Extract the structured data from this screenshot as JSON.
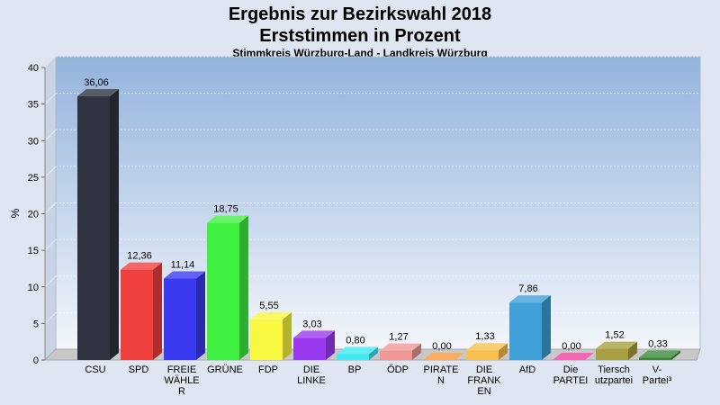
{
  "chart_data": {
    "type": "bar",
    "title_lines": [
      "Ergebnis zur Bezirkswahl 2018",
      "Erststimmen in Prozent"
    ],
    "subtitle": "Stimmkreis Würzburg-Land - Landkreis Würzburg",
    "ylabel": "%",
    "ylim": [
      0,
      40
    ],
    "yticks": [
      0,
      5,
      10,
      15,
      20,
      25,
      30,
      35,
      40
    ],
    "grid": true,
    "categories": [
      [
        "CSU"
      ],
      [
        "SPD"
      ],
      [
        "FREIE",
        "WÄHLE",
        "R"
      ],
      [
        "GRÜNE"
      ],
      [
        "FDP"
      ],
      [
        "DIE",
        "LINKE"
      ],
      [
        "BP"
      ],
      [
        "ÖDP"
      ],
      [
        "PIRATE",
        "N"
      ],
      [
        "DIE",
        "FRANK",
        "EN"
      ],
      [
        "AfD"
      ],
      [
        "Die",
        "PARTEI"
      ],
      [
        "Tiersch",
        "utzpartei"
      ],
      [
        "V-",
        "Partei³"
      ]
    ],
    "values": [
      36.06,
      12.36,
      11.14,
      18.75,
      5.55,
      3.03,
      0.8,
      1.27,
      0.0,
      1.33,
      7.86,
      0.0,
      1.52,
      0.33
    ],
    "value_labels": [
      "36,06",
      "12,36",
      "11,14",
      "18,75",
      "5,55",
      "3,03",
      "0,80",
      "1,27",
      "0,00",
      "1,33",
      "7,86",
      "0,00",
      "1,52",
      "0,33"
    ],
    "colors": [
      "#2f3340",
      "#f04040",
      "#3a3af0",
      "#40f040",
      "#f8f840",
      "#9a3af0",
      "#40e8f0",
      "#f09898",
      "#f89838",
      "#f8c050",
      "#40a0d8",
      "#f040a0",
      "#a8a040",
      "#3a8a3a"
    ]
  }
}
